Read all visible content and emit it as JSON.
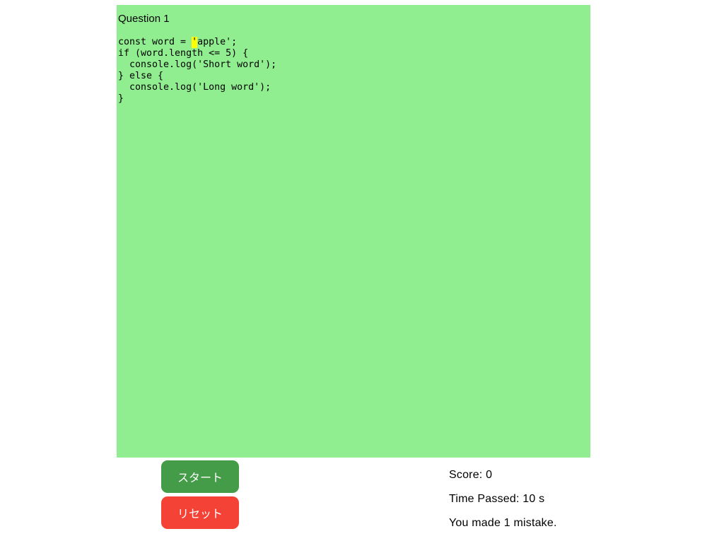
{
  "page": {
    "background": "#ffffff"
  },
  "question_panel": {
    "title": "Question 1",
    "code_lines": [
      "const word = 'apple';",
      "if (word.length <= 5) {",
      "  console.log('Short word');",
      "} else {",
      "  console.log('Long word');",
      "}"
    ],
    "highlight": {
      "line": 0,
      "char": 13
    },
    "colors": {
      "panel_bg": "#90ee90",
      "highlight_bg": "#ffff00",
      "text": "#000000"
    }
  },
  "controls": {
    "start_label": "スタート",
    "reset_label": "リセット",
    "start_color": "#449b48",
    "reset_color": "#f44336",
    "button_text_color": "#ffffff"
  },
  "stats": {
    "score": "Score: 0",
    "score_value": "0",
    "time_passed": "Time Passed: 10 s",
    "time_value": "10",
    "mistakes": "You made 1 mistake.",
    "mistakes_value": "1"
  }
}
